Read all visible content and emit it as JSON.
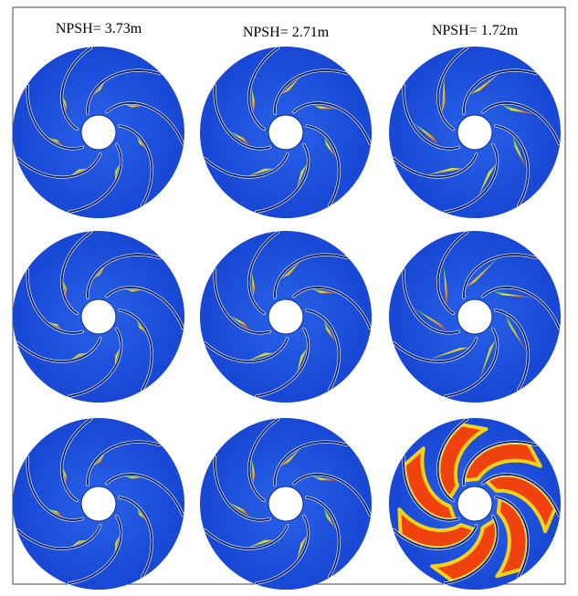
{
  "headers": [
    "NPSH= 3.73m",
    "NPSH= 2.71m",
    "NPSH= 1.72m"
  ]
}
